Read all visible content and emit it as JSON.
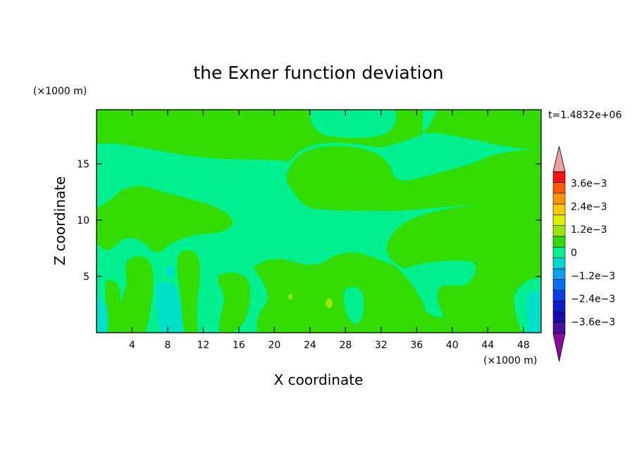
{
  "chart_data": {
    "type": "heatmap",
    "title": "the Exner function deviation",
    "xlabel": "X coordinate",
    "ylabel": "Z coordinate",
    "x_unit": "(×1000 m)",
    "y_unit": "(×1000 m)",
    "time_label": "t=1.4832e+06",
    "xlim": [
      0,
      50
    ],
    "ylim": [
      0,
      19.8
    ],
    "x_ticks": [
      4,
      8,
      12,
      16,
      20,
      24,
      28,
      32,
      36,
      40,
      44,
      48
    ],
    "x_tick_labels": [
      "4",
      "8",
      "12",
      "16",
      "20",
      "24",
      "28",
      "32",
      "36",
      "40",
      "44",
      "48"
    ],
    "y_ticks": [
      5,
      10,
      15
    ],
    "y_tick_labels": [
      "5",
      "10",
      "15"
    ],
    "colorbar": {
      "levels": [
        -0.0042,
        -0.0036,
        -0.003,
        -0.0024,
        -0.0018,
        -0.0012,
        -0.0006,
        0,
        0.0006,
        0.0012,
        0.0018,
        0.0024,
        0.003,
        0.0036,
        0.0042
      ],
      "tick_values": [
        -0.0036,
        -0.0024,
        -0.0012,
        0,
        0.0012,
        0.0024,
        0.0036
      ],
      "tick_labels": [
        "−3.6e−3",
        "−2.4e−3",
        "−1.2e−3",
        "0",
        "1.2e−3",
        "2.4e−3",
        "3.6e−3"
      ],
      "colors": [
        "#4b0f9e",
        "#1a0aa8",
        "#0a1ec8",
        "#0a3ce6",
        "#0a6ef0",
        "#0aa0f0",
        "#00d8d8",
        "#00f090",
        "#32dc00",
        "#9be600",
        "#dcf000",
        "#ffc800",
        "#ff9600",
        "#ff5a00",
        "#f01414"
      ],
      "under_color": "#8c0aa0",
      "over_color": "#f0a0a0"
    },
    "fill_colors": {
      "background_zero_to_neg": "#00f090",
      "positive_zero_to_06": "#32dc00",
      "negative_06_to_12": "#00e0c8",
      "positive_06_to_12": "#9be600"
    },
    "regions": [
      {
        "level": "0 to 6e-4",
        "approx_extent": "upper band z 14-19.8 across x 0-50, lower-right lobe x 34-50 z 0-11, scattered cells near x 14-36 z 0-7"
      },
      {
        "level": "-6e-4 to 0",
        "approx_extent": "central band z 5-17, patches near x 40-46 z 4-7"
      },
      {
        "level": "-1.2e-3 to -6e-4",
        "approx_extent": "small cells near x 0-1 z 0-3, x 7-10 z 0-5, x 49-50 z 0-3"
      },
      {
        "level": "6e-4 to 1.2e-3",
        "approx_extent": "tiny cells near x 22 z 3.5 and x 26 z 2.7"
      }
    ]
  }
}
